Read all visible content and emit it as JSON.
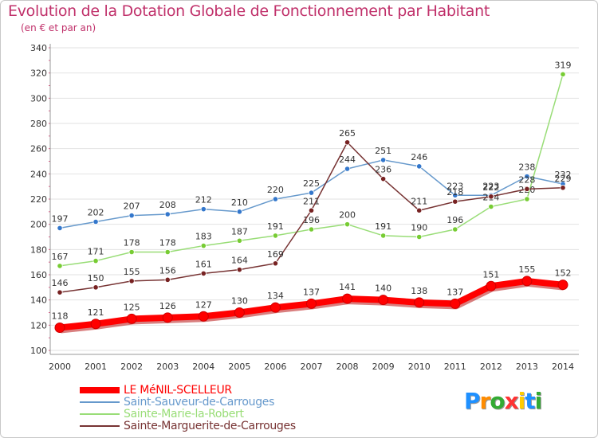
{
  "chart_data": {
    "type": "line",
    "title": "Evolution de la Dotation Globale de Fonctionnement par Habitant",
    "subtitle": "(en € et par an)",
    "xlabel": "",
    "ylabel": "",
    "ylim": [
      100,
      340
    ],
    "yticks": [
      100,
      120,
      140,
      160,
      180,
      200,
      220,
      240,
      260,
      280,
      300,
      320,
      340
    ],
    "categories": [
      "2000",
      "2001",
      "2002",
      "2003",
      "2004",
      "2005",
      "2006",
      "2007",
      "2008",
      "2009",
      "2010",
      "2011",
      "2012",
      "2013",
      "2014"
    ],
    "series": [
      {
        "name": "LE MéNIL-SCELLEUR",
        "color": "#ff0000",
        "marker": "#ff0000",
        "width": "thick",
        "values": [
          118,
          121,
          125,
          126,
          127,
          130,
          134,
          137,
          141,
          140,
          138,
          137,
          151,
          155,
          152
        ]
      },
      {
        "name": "Saint-Sauveur-de-Carrouges",
        "color": "#6699cc",
        "marker": "#3377cc",
        "width": "thin",
        "values": [
          197,
          202,
          207,
          208,
          212,
          210,
          220,
          225,
          244,
          251,
          246,
          223,
          223,
          238,
          232
        ]
      },
      {
        "name": "Sainte-Marie-la-Robert",
        "color": "#99dd77",
        "marker": "#77cc33",
        "width": "thin",
        "values": [
          167,
          171,
          178,
          178,
          183,
          187,
          191,
          196,
          200,
          191,
          190,
          196,
          214,
          220,
          319
        ]
      },
      {
        "name": "Sainte-Marguerite-de-Carrouges",
        "color": "#773333",
        "marker": "#772222",
        "width": "thin",
        "values": [
          146,
          150,
          155,
          156,
          161,
          164,
          169,
          211,
          265,
          236,
          211,
          218,
          222,
          228,
          229
        ]
      }
    ],
    "legend_position": "bottom-left",
    "grid": "horizontal"
  },
  "logo": {
    "letters": [
      "P",
      "r",
      "o",
      "x",
      "i",
      "t",
      "i"
    ],
    "colors": [
      "#1e90ff",
      "#ff8c00",
      "#33aa33",
      "#ff3333",
      "#ffcc00",
      "#1e90ff",
      "#33aa33"
    ]
  }
}
